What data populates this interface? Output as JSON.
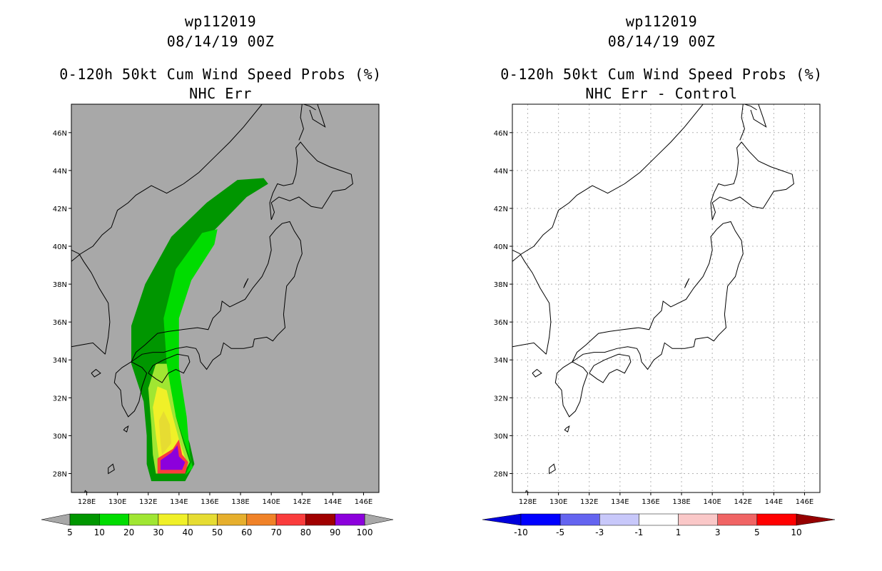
{
  "chart_data": [
    {
      "type": "heatmap",
      "title_lines": [
        "wp112019",
        "08/14/19 00Z",
        "0-120h 50kt Cum Wind Speed Probs (%)",
        "NHC Err"
      ],
      "x_ticks": [
        "128E",
        "130E",
        "132E",
        "134E",
        "136E",
        "138E",
        "140E",
        "142E",
        "144E",
        "146E"
      ],
      "y_ticks": [
        "28N",
        "30N",
        "32N",
        "34N",
        "36N",
        "38N",
        "40N",
        "42N",
        "44N",
        "46N"
      ],
      "xlim": [
        127,
        147
      ],
      "ylim": [
        27,
        47.5
      ],
      "background_color": "#a8a8a8",
      "grid": false,
      "colorbar": {
        "labels": [
          "5",
          "10",
          "20",
          "30",
          "40",
          "50",
          "60",
          "70",
          "80",
          "90",
          "100"
        ],
        "colors": [
          "#009600",
          "#00dc00",
          "#a0e632",
          "#f0f028",
          "#e6dc32",
          "#e6af2d",
          "#f08228",
          "#fa3c3c",
          "#a00000",
          "#8c00dc"
        ]
      },
      "contours": [
        {
          "level": 5,
          "color": "#009600",
          "path": [
            [
              132.2,
              27.6
            ],
            [
              134.4,
              27.6
            ],
            [
              135.0,
              28.5
            ],
            [
              134.7,
              29.6
            ],
            [
              134.0,
              31.2
            ],
            [
              133.5,
              33.5
            ],
            [
              133.3,
              36.0
            ],
            [
              134.2,
              38.5
            ],
            [
              136.0,
              40.6
            ],
            [
              138.4,
              42.6
            ],
            [
              139.8,
              43.3
            ],
            [
              139.5,
              43.6
            ],
            [
              137.8,
              43.5
            ],
            [
              135.8,
              42.3
            ],
            [
              133.5,
              40.5
            ],
            [
              131.8,
              38.0
            ],
            [
              130.9,
              35.8
            ],
            [
              130.9,
              33.8
            ],
            [
              131.7,
              31.8
            ],
            [
              131.9,
              30.0
            ],
            [
              131.9,
              28.5
            ]
          ]
        },
        {
          "level": 10,
          "color": "#00dc00",
          "path": [
            [
              132.4,
              27.9
            ],
            [
              134.4,
              27.9
            ],
            [
              134.8,
              28.6
            ],
            [
              134.3,
              29.8
            ],
            [
              133.6,
              31.5
            ],
            [
              133.2,
              33.8
            ],
            [
              133.0,
              36.2
            ],
            [
              133.8,
              38.8
            ],
            [
              135.5,
              40.7
            ],
            [
              136.5,
              40.9
            ],
            [
              136.3,
              40.1
            ],
            [
              134.8,
              38.2
            ],
            [
              134.0,
              36.2
            ],
            [
              134.0,
              33.6
            ],
            [
              134.5,
              31.0
            ],
            [
              134.7,
              29.0
            ],
            [
              134.9,
              28.3
            ],
            [
              134.4,
              27.9
            ]
          ]
        },
        {
          "level": 20,
          "color": "#a0e632",
          "path": [
            [
              132.5,
              28.0
            ],
            [
              134.3,
              28.0
            ],
            [
              134.7,
              28.6
            ],
            [
              134.3,
              29.6
            ],
            [
              133.8,
              31.0
            ],
            [
              133.4,
              32.8
            ],
            [
              133.2,
              33.8
            ],
            [
              132.5,
              33.8
            ],
            [
              132.0,
              32.5
            ],
            [
              132.2,
              30.5
            ],
            [
              132.3,
              29.0
            ]
          ]
        },
        {
          "level": 30,
          "color": "#f0f028",
          "path": [
            [
              132.8,
              28.2
            ],
            [
              134.1,
              28.2
            ],
            [
              134.4,
              28.8
            ],
            [
              134.0,
              29.8
            ],
            [
              133.6,
              31.0
            ],
            [
              133.2,
              32.4
            ],
            [
              132.6,
              32.6
            ],
            [
              132.3,
              31.5
            ],
            [
              132.5,
              30.0
            ],
            [
              132.7,
              28.8
            ]
          ]
        },
        {
          "level": 40,
          "color": "#e6dc32",
          "path": [
            [
              132.9,
              29.0
            ],
            [
              133.5,
              29.6
            ],
            [
              133.4,
              30.6
            ],
            [
              133.0,
              31.3
            ],
            [
              132.7,
              30.8
            ],
            [
              132.8,
              29.6
            ]
          ]
        },
        {
          "level": 80,
          "color": "#fa3c3c",
          "path": [
            [
              132.6,
              28.0
            ],
            [
              134.4,
              28.0
            ],
            [
              134.6,
              28.6
            ],
            [
              134.2,
              29.0
            ],
            [
              134.0,
              29.8
            ],
            [
              133.6,
              29.3
            ],
            [
              132.6,
              28.8
            ]
          ]
        },
        {
          "level": 100,
          "color": "#8c00dc",
          "path": [
            [
              132.8,
              28.2
            ],
            [
              134.2,
              28.2
            ],
            [
              134.4,
              28.6
            ],
            [
              134.0,
              28.9
            ],
            [
              133.9,
              29.5
            ],
            [
              133.5,
              29.1
            ],
            [
              132.8,
              28.7
            ]
          ]
        }
      ]
    },
    {
      "type": "heatmap",
      "title_lines": [
        "wp112019",
        "08/14/19 00Z",
        "0-120h 50kt Cum Wind Speed Probs (%)",
        "NHC Err - Control"
      ],
      "x_ticks": [
        "128E",
        "130E",
        "132E",
        "134E",
        "136E",
        "138E",
        "140E",
        "142E",
        "144E",
        "146E"
      ],
      "y_ticks": [
        "28N",
        "30N",
        "32N",
        "34N",
        "36N",
        "38N",
        "40N",
        "42N",
        "44N",
        "46N"
      ],
      "xlim": [
        127,
        147
      ],
      "ylim": [
        27,
        47.5
      ],
      "background_color": "#ffffff",
      "grid": true,
      "colorbar": {
        "labels": [
          "-10",
          "-5",
          "-3",
          "-1",
          "1",
          "3",
          "5",
          "10"
        ],
        "colors": [
          "#0000dc",
          "#0000ff",
          "#6464f0",
          "#c8c8fa",
          "#ffffff",
          "#fac8c8",
          "#f06464",
          "#ff0000",
          "#960000"
        ]
      },
      "contours": []
    }
  ]
}
